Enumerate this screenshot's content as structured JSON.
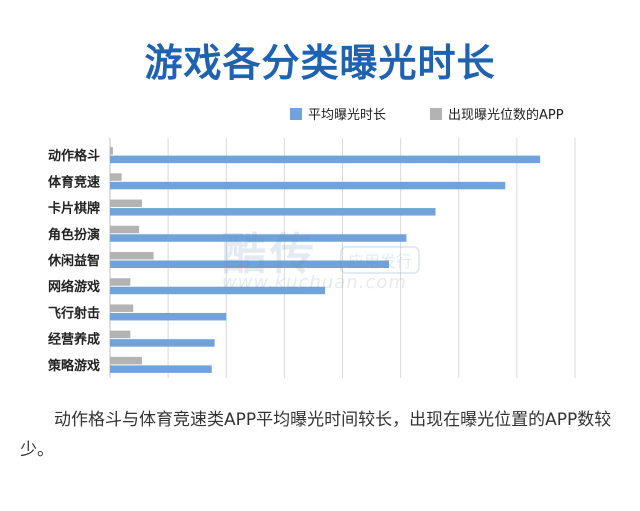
{
  "chart_data": {
    "type": "bar",
    "orientation": "horizontal",
    "title": "游戏各分类曝光时长",
    "categories": [
      "动作格斗",
      "体育竞速",
      "卡片棋牌",
      "角色扮演",
      "休闲益智",
      "网络游戏",
      "飞行射击",
      "经营养成",
      "策略游戏"
    ],
    "series": [
      {
        "name": "平均曝光时长",
        "color": "#6fa3d9",
        "values": [
          74,
          68,
          56,
          51,
          48,
          37,
          20,
          18,
          17.5
        ]
      },
      {
        "name": "出现曝光位数的APP",
        "color": "#b3b3b3",
        "values": [
          0.5,
          2,
          5.5,
          5,
          7.5,
          3.5,
          4,
          3.5,
          5.5
        ]
      }
    ],
    "xlim": [
      0,
      80
    ],
    "grid": true,
    "legend": "top-right"
  },
  "caption": "动作格斗与体育竞速类APP平均曝光时间较长，出现在曝光位置的APP数较少。",
  "watermark": {
    "main": "酷传",
    "box": "应用发行",
    "url": "www.kuchuan.com"
  }
}
